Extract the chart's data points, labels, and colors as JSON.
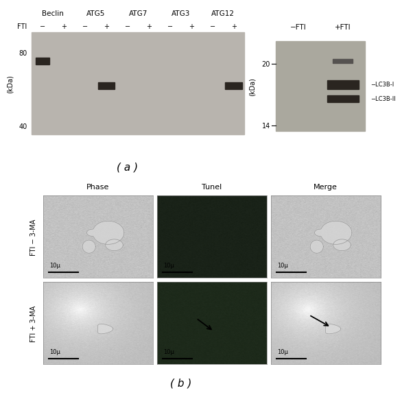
{
  "bg_color": "#ffffff",
  "panel_a_label": "( a )",
  "panel_b_label": "( b )",
  "wb1": {
    "title_proteins": [
      "Beclin",
      "ATG5",
      "ATG7",
      "ATG3",
      "ATG12"
    ],
    "fti_label": "FTI",
    "fti_signs": [
      "−",
      "+",
      "−",
      "+",
      "−",
      "+",
      "−",
      "+",
      "−",
      "+"
    ],
    "y_ticks": [
      40,
      80
    ],
    "y_label": "(kDa)",
    "gel_color": "#b8b4ae",
    "band_color": "#2a2520"
  },
  "wb2": {
    "lane_labels": [
      "−FTI",
      "+FTI"
    ],
    "y_ticks": [
      14,
      20
    ],
    "y_label": "(kDa)",
    "gel_color": "#aaa89e",
    "band_color": "#2a2520",
    "lc3b_labels": [
      "−LC3B-I",
      "−LC3B-II"
    ]
  },
  "row_labels": [
    "FTI − 3-MA",
    "FTI + 3-MA"
  ],
  "col_labels": [
    "Phase",
    "Tunel",
    "Merge"
  ],
  "scale_bar_label": "10μ"
}
